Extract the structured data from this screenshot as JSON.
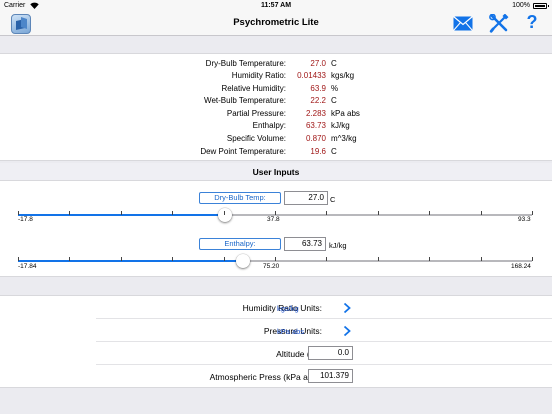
{
  "status_bar": {
    "carrier": "Carrier",
    "time": "11:57 AM",
    "battery": "100%"
  },
  "nav": {
    "title": "Psychrometric Lite",
    "help_label": "?"
  },
  "results": [
    {
      "label": "Dry-Bulb Temperature:",
      "value": "27.0",
      "unit": "C"
    },
    {
      "label": "Humidity Ratio:",
      "value": "0.01433",
      "unit": "kgs/kg"
    },
    {
      "label": "Relative Humidity:",
      "value": "63.9",
      "unit": "%"
    },
    {
      "label": "Wet-Bulb Temperature:",
      "value": "22.2",
      "unit": "C"
    },
    {
      "label": "Partial Pressure:",
      "value": "2.283",
      "unit": "kPa abs"
    },
    {
      "label": "Enthalpy:",
      "value": "63.73",
      "unit": "kJ/kg"
    },
    {
      "label": "Specific Volume:",
      "value": "0.870",
      "unit": "m^3/kg"
    },
    {
      "label": "Dew Point Temperature:",
      "value": "19.6",
      "unit": "C"
    }
  ],
  "user_inputs": {
    "header": "User Inputs",
    "dry_bulb": {
      "button_label": "Dry-Bulb Temp:",
      "value": "27.0",
      "unit": "C",
      "min_label": "-17.8",
      "mid_label": "37.8",
      "max_label": "93.3",
      "min": -17.8,
      "max": 93.3,
      "current": 27.0
    },
    "enthalpy": {
      "button_label": "Enthalpy:",
      "value": "63.73",
      "unit": "kJ/kg",
      "min_label": "-17.84",
      "mid_label": "75.20",
      "max_label": "168.24",
      "min": -17.84,
      "max": 168.24,
      "current": 63.73
    }
  },
  "settings": {
    "humidity_units": {
      "label": "Humidity Ratio Units:",
      "value": "kgs/kg"
    },
    "pressure_units": {
      "label": "Pressure Units:",
      "value": "kPa abs"
    },
    "altitude": {
      "label": "Altitude (m):",
      "value": "0.0"
    },
    "atm_press": {
      "label": "Atmospheric Press (kPa abs):",
      "value": "101.379"
    }
  },
  "colors": {
    "accent": "#1273e8",
    "value_red": "#a01818"
  }
}
